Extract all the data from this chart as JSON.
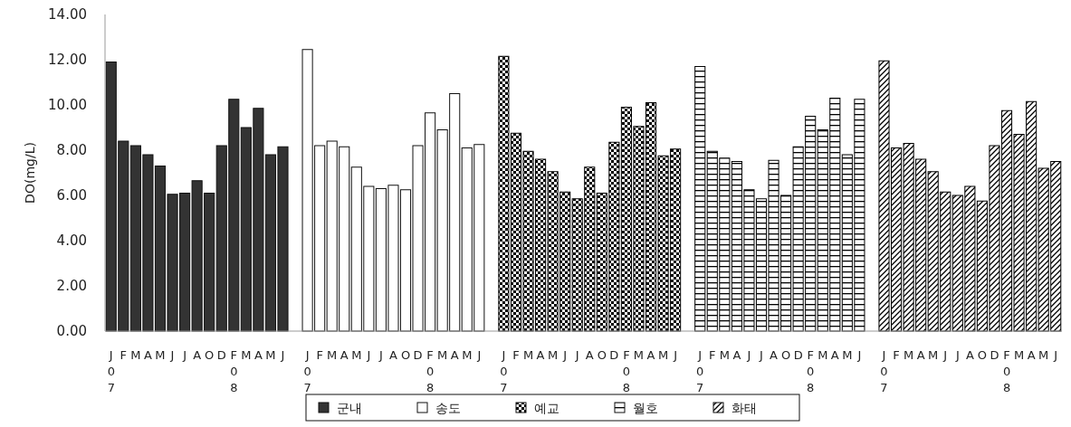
{
  "chart_data": {
    "type": "bar",
    "ylabel": "DO(mg/L)",
    "ylim": [
      0,
      14
    ],
    "yticks": [
      {
        "value": 0,
        "label": "0.00"
      },
      {
        "value": 2,
        "label": "2.00"
      },
      {
        "value": 4,
        "label": "4.00"
      },
      {
        "value": 6,
        "label": "6.00"
      },
      {
        "value": 8,
        "label": "8.00"
      },
      {
        "value": 10,
        "label": "10.00"
      },
      {
        "value": 12,
        "label": "12.00"
      },
      {
        "value": 14,
        "label": "14.00"
      }
    ],
    "categories": [
      "J\n0\n7",
      "F",
      "M",
      "A",
      "M",
      "J",
      "J",
      "A",
      "O",
      "D",
      "F\n0\n8",
      "M",
      "A",
      "M",
      "J",
      null,
      "J\n0\n7",
      "F",
      "M",
      "A",
      "M",
      "J",
      "J",
      "A",
      "O",
      "D",
      "F\n0\n8",
      "M",
      "A",
      "M",
      "J",
      null,
      "J\n0\n7",
      "F",
      "M",
      "A",
      "M",
      "J",
      "J",
      "A",
      "O",
      "D",
      "F\n0\n8",
      "M",
      "A",
      "M",
      "J",
      null,
      "J\n0\n7",
      "F",
      "M",
      "A",
      "J",
      "J",
      "A",
      "O",
      "D",
      "F\n0\n8",
      "M",
      "A",
      "M",
      "J",
      null,
      "J\n0\n7",
      "F",
      "M",
      "A",
      "M",
      "J",
      "J",
      "A",
      "O",
      "D",
      "F\n0\n8",
      "M",
      "A",
      "M",
      "J"
    ],
    "legend": "bottom",
    "series": [
      {
        "name": "군내",
        "color": "#333333",
        "values": [
          11.9,
          8.4,
          8.2,
          7.8,
          7.3,
          6.05,
          6.1,
          6.65,
          6.1,
          8.2,
          10.25,
          9.0,
          9.85,
          7.8,
          8.15,
          null,
          null,
          null,
          null,
          null,
          null,
          null,
          null,
          null,
          null,
          null,
          null,
          null,
          null,
          null,
          null,
          null,
          null,
          null,
          null,
          null,
          null,
          null,
          null,
          null,
          null,
          null,
          null,
          null,
          null,
          null,
          null,
          null,
          null,
          null,
          null,
          null,
          null,
          null,
          null,
          null,
          null,
          null,
          null,
          null,
          null,
          null,
          null,
          null,
          null,
          null,
          null,
          null,
          null,
          null,
          null,
          null,
          null,
          null,
          null,
          null,
          null,
          null
        ]
      },
      {
        "name": "송도",
        "color": "#ffffff",
        "values": [
          null,
          null,
          null,
          null,
          null,
          null,
          null,
          null,
          null,
          null,
          null,
          null,
          null,
          null,
          null,
          null,
          12.45,
          8.2,
          8.4,
          8.15,
          7.25,
          6.4,
          6.3,
          6.45,
          6.25,
          8.2,
          9.65,
          8.9,
          10.5,
          8.1,
          8.25,
          null,
          null,
          null,
          null,
          null,
          null,
          null,
          null,
          null,
          null,
          null,
          null,
          null,
          null,
          null,
          null,
          null,
          null,
          null,
          null,
          null,
          null,
          null,
          null,
          null,
          null,
          null,
          null,
          null,
          null,
          null,
          null,
          null,
          null,
          null,
          null,
          null,
          null,
          null,
          null,
          null,
          null,
          null,
          null,
          null,
          null,
          null
        ]
      },
      {
        "name": "예교",
        "color": "#000000",
        "values": [
          null,
          null,
          null,
          null,
          null,
          null,
          null,
          null,
          null,
          null,
          null,
          null,
          null,
          null,
          null,
          null,
          null,
          null,
          null,
          null,
          null,
          null,
          null,
          null,
          null,
          null,
          null,
          null,
          null,
          null,
          null,
          null,
          12.15,
          8.75,
          7.95,
          7.6,
          7.05,
          6.15,
          5.85,
          7.25,
          6.1,
          8.35,
          9.9,
          9.05,
          10.1,
          7.75,
          8.05,
          null,
          null,
          null,
          null,
          null,
          null,
          null,
          null,
          null,
          null,
          null,
          null,
          null,
          null,
          null,
          null,
          null,
          null,
          null,
          null,
          null,
          null,
          null,
          null,
          null,
          null,
          null,
          null,
          null,
          null,
          null
        ]
      },
      {
        "name": "월호",
        "color": "#000000",
        "values": [
          null,
          null,
          null,
          null,
          null,
          null,
          null,
          null,
          null,
          null,
          null,
          null,
          null,
          null,
          null,
          null,
          null,
          null,
          null,
          null,
          null,
          null,
          null,
          null,
          null,
          null,
          null,
          null,
          null,
          null,
          null,
          null,
          null,
          null,
          null,
          null,
          null,
          null,
          null,
          null,
          null,
          null,
          null,
          null,
          null,
          null,
          null,
          null,
          11.7,
          7.95,
          7.65,
          7.5,
          6.25,
          5.85,
          7.55,
          6.0,
          8.15,
          9.5,
          8.9,
          10.3,
          7.8,
          10.25,
          null,
          null,
          null,
          null,
          null,
          null,
          null,
          null,
          null,
          null,
          null,
          null,
          null,
          null,
          null,
          null
        ]
      },
      {
        "name": "화태",
        "color": "#000000",
        "values": [
          null,
          null,
          null,
          null,
          null,
          null,
          null,
          null,
          null,
          null,
          null,
          null,
          null,
          null,
          null,
          null,
          null,
          null,
          null,
          null,
          null,
          null,
          null,
          null,
          null,
          null,
          null,
          null,
          null,
          null,
          null,
          null,
          null,
          null,
          null,
          null,
          null,
          null,
          null,
          null,
          null,
          null,
          null,
          null,
          null,
          null,
          null,
          null,
          null,
          null,
          null,
          null,
          null,
          null,
          null,
          null,
          null,
          null,
          null,
          null,
          null,
          null,
          null,
          11.95,
          8.1,
          8.3,
          7.6,
          7.05,
          6.15,
          6.0,
          6.4,
          5.75,
          8.2,
          9.75,
          8.7,
          10.15,
          7.2,
          7.5
        ]
      }
    ]
  }
}
